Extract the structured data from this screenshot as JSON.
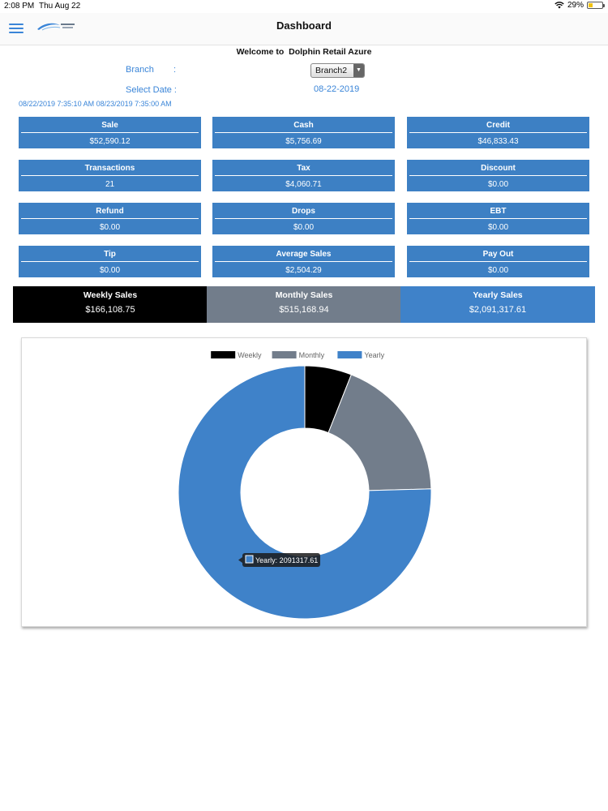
{
  "status_bar": {
    "time": "2:08 PM",
    "date": "Thu Aug 22",
    "battery": "29%",
    "battery_level": 0.29
  },
  "nav": {
    "title": "Dashboard"
  },
  "welcome": {
    "prefix": "Welcome to",
    "store_name": "Dolphin Retail Azure"
  },
  "filters": {
    "branch_label": "Branch",
    "branch_colon": ":",
    "branch_value": "Branch2",
    "date_label": "Select Date :",
    "date_value": "08-22-2019",
    "range_text": "08/22/2019 7:35:10 AM 08/23/2019 7:35:00 AM"
  },
  "tiles": [
    {
      "label": "Sale",
      "value": "$52,590.12"
    },
    {
      "label": "Cash",
      "value": "$5,756.69"
    },
    {
      "label": "Credit",
      "value": "$46,833.43"
    },
    {
      "label": "Transactions",
      "value": "21"
    },
    {
      "label": "Tax",
      "value": "$4,060.71"
    },
    {
      "label": "Discount",
      "value": "$0.00"
    },
    {
      "label": "Refund",
      "value": "$0.00"
    },
    {
      "label": "Drops",
      "value": "$0.00"
    },
    {
      "label": "EBT",
      "value": "$0.00"
    },
    {
      "label": "Tip",
      "value": "$0.00"
    },
    {
      "label": "Average Sales",
      "value": "$2,504.29"
    },
    {
      "label": "Pay Out",
      "value": "$0.00"
    }
  ],
  "periods": [
    {
      "label": "Weekly Sales",
      "value": "$166,108.75",
      "color": "#000000"
    },
    {
      "label": "Monthly Sales",
      "value": "$515,168.94",
      "color": "#727d8b"
    },
    {
      "label": "Yearly Sales",
      "value": "$2,091,317.61",
      "color": "#3f82c9"
    }
  ],
  "chart_data": {
    "type": "pie",
    "variant": "doughnut",
    "legend_position": "top",
    "categories": [
      "Weekly",
      "Monthly",
      "Yearly"
    ],
    "values": [
      166108.75,
      515168.94,
      2091317.61
    ],
    "colors": [
      "#000000",
      "#727d8b",
      "#3f82c9"
    ],
    "tooltip": "Yearly: 2091317.61"
  }
}
